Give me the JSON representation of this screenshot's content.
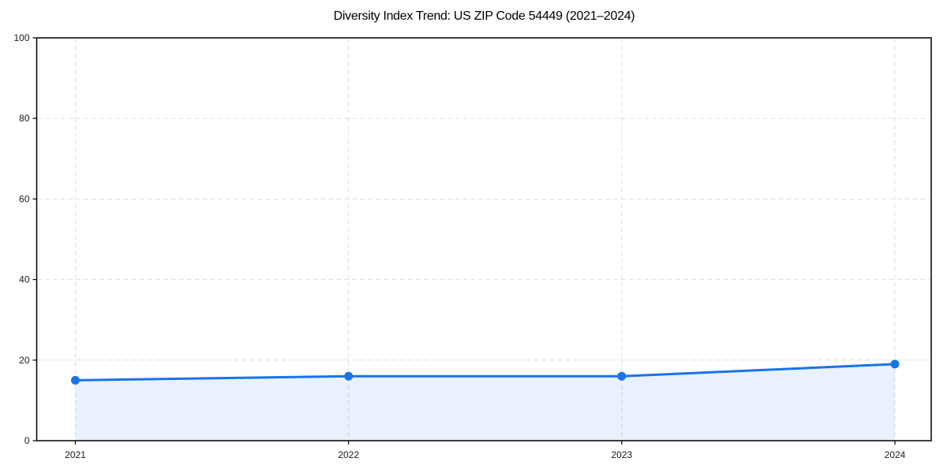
{
  "chart_data": {
    "type": "line",
    "title": "Diversity Index Trend: US ZIP Code 54449 (2021–2024)",
    "x": [
      "2021",
      "2022",
      "2023",
      "2024"
    ],
    "series": [
      {
        "name": "Diversity Index",
        "values": [
          15,
          16,
          16,
          19
        ]
      }
    ],
    "xlabel": "",
    "ylabel": "",
    "ylim": [
      0,
      100
    ],
    "yticks": [
      0,
      20,
      40,
      60,
      80,
      100
    ],
    "xtick_labels": [
      "2021",
      "2022",
      "2023",
      "2024"
    ],
    "grid": "dashed",
    "legend": "none",
    "area_fill": true,
    "marker": "circle",
    "colors": {
      "line": "#1a73e8",
      "area": "rgba(26,115,232,0.10)",
      "grid": "#dedede",
      "axis": "#000000",
      "tick_label": "#1a1a1a",
      "title": "#000000",
      "background": "#ffffff"
    }
  }
}
